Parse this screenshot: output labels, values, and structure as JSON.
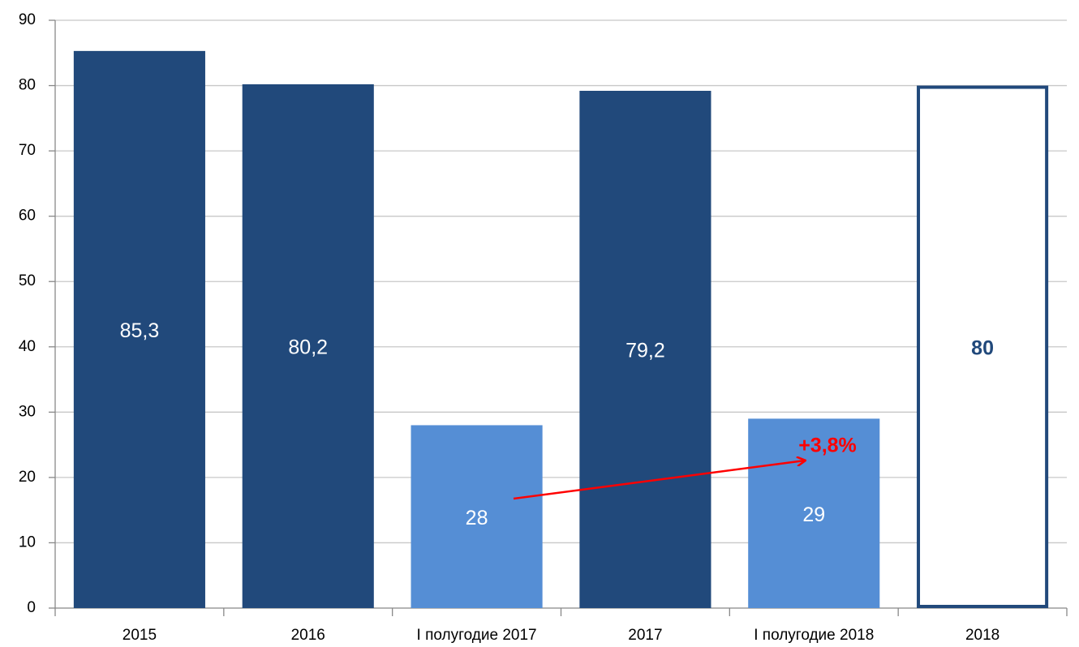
{
  "chart_data": {
    "type": "bar",
    "categories": [
      "2015",
      "2016",
      "I полугодие 2017",
      "2017",
      "I полугодие 2018",
      "2018"
    ],
    "values": [
      85.3,
      80.2,
      28,
      79.2,
      29,
      80
    ],
    "value_labels": [
      "85,3",
      "80,2",
      "28",
      "79,2",
      "29",
      "80"
    ],
    "colors": [
      "#21497b",
      "#21497b",
      "#558ed5",
      "#21497b",
      "#558ed5",
      "#21497b"
    ],
    "bar_styles": [
      "solid",
      "solid",
      "solid",
      "solid",
      "solid",
      "outline"
    ],
    "ylim": [
      0,
      90
    ],
    "yticks": [
      0,
      10,
      20,
      30,
      40,
      50,
      60,
      70,
      80,
      90
    ],
    "grid": true,
    "annotation": {
      "text": "+3,8%",
      "color": "#ff0000"
    }
  }
}
